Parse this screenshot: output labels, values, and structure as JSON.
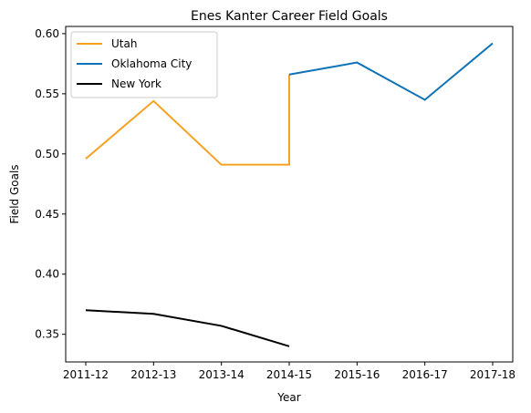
{
  "chart_data": {
    "type": "line",
    "title": "Enes Kanter Career Field Goals",
    "xlabel": "Year",
    "ylabel": "Field Goals",
    "categories": [
      "2011-12",
      "2012-13",
      "2013-14",
      "2014-15",
      "2015-16",
      "2016-17",
      "2017-18"
    ],
    "ylim": [
      0.327,
      0.606
    ],
    "yticks": [
      0.35,
      0.4,
      0.45,
      0.5,
      0.55,
      0.6
    ],
    "grid": false,
    "legend_position": "top-left",
    "series": [
      {
        "name": "Utah",
        "color": "#f5a122",
        "points": [
          {
            "x": "2011-12",
            "y": 0.496
          },
          {
            "x": "2012-13",
            "y": 0.544
          },
          {
            "x": "2013-14",
            "y": 0.491
          },
          {
            "x": "2014-15",
            "y": 0.491
          },
          {
            "x": "2014-15",
            "y": 0.566
          }
        ]
      },
      {
        "name": "Oklahoma City",
        "color": "#0e72b6",
        "points": [
          {
            "x": "2014-15",
            "y": 0.566
          },
          {
            "x": "2015-16",
            "y": 0.576
          },
          {
            "x": "2016-17",
            "y": 0.545
          },
          {
            "x": "2017-18",
            "y": 0.592
          }
        ]
      },
      {
        "name": "New York",
        "color": "#000000",
        "points": [
          {
            "x": "2011-12",
            "y": 0.37
          },
          {
            "x": "2012-13",
            "y": 0.367
          },
          {
            "x": "2013-14",
            "y": 0.357
          },
          {
            "x": "2014-15",
            "y": 0.34
          }
        ]
      }
    ]
  }
}
